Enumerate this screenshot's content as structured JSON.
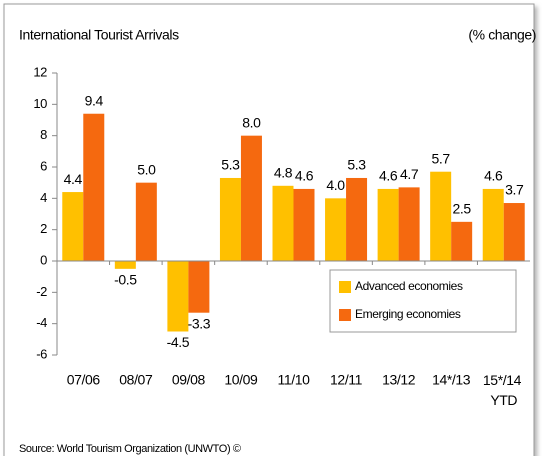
{
  "chart_data": {
    "type": "bar",
    "title": "International Tourist Arrivals",
    "subtitle": "(% change)",
    "source": "Source: World Tourism Organization (UNWTO) ©",
    "categories": [
      "07/06",
      "08/07",
      "09/08",
      "10/09",
      "11/10",
      "12/11",
      "13/12",
      "14*/13",
      "15*/14 YTD"
    ],
    "series": [
      {
        "name": "Advanced economies",
        "color": "#FFC000",
        "values": [
          4.4,
          -0.5,
          -4.5,
          5.3,
          4.8,
          4.0,
          4.6,
          5.7,
          4.6
        ],
        "value_labels": [
          "4.4",
          "-0.5",
          "-4.5",
          "5.3",
          "4.8",
          "4.0",
          "4.6",
          "5.7",
          "4.6"
        ]
      },
      {
        "name": "Emerging economies",
        "color": "#F5690F",
        "values": [
          9.4,
          5.0,
          -3.3,
          8.0,
          4.6,
          5.3,
          4.7,
          2.5,
          3.7
        ],
        "value_labels": [
          "9.4",
          "5.0",
          "-3.3",
          "8.0",
          "4.6",
          "5.3",
          "4.7",
          "2.5",
          "3.7"
        ]
      }
    ],
    "ylim": [
      -6,
      12
    ],
    "yticks": [
      -6,
      -4,
      -2,
      0,
      2,
      4,
      6,
      8,
      10,
      12
    ],
    "legend": "lower right"
  }
}
